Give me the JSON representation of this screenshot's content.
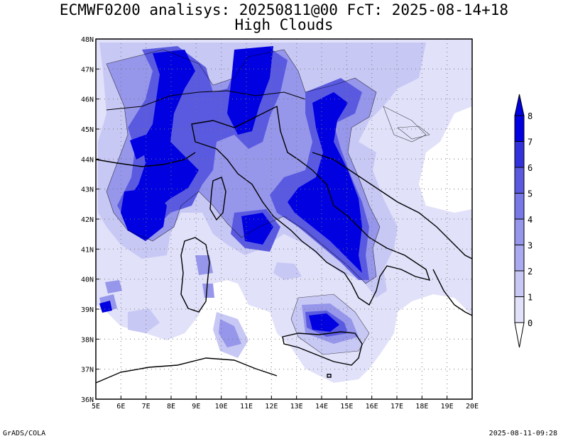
{
  "title_line1": "ECMWF0200 analisys: 20250811@00 FcT: 2025-08-14+18",
  "title_line2": "High Clouds",
  "footer_left": "GrADS/COLA",
  "footer_right": "2025-08-11-09:28",
  "map": {
    "lon_range": [
      5,
      20
    ],
    "lat_range": [
      36,
      48
    ],
    "lon_ticks": [
      "5E",
      "6E",
      "7E",
      "8E",
      "9E",
      "10E",
      "11E",
      "12E",
      "13E",
      "14E",
      "15E",
      "16E",
      "17E",
      "18E",
      "19E",
      "20E"
    ],
    "lat_ticks": [
      "36N",
      "37N",
      "38N",
      "39N",
      "40N",
      "41N",
      "42N",
      "43N",
      "44N",
      "45N",
      "46N",
      "47N",
      "48N"
    ],
    "grid": "dotted"
  },
  "colorbar": {
    "levels": [
      "0",
      "1",
      "2",
      "3",
      "4",
      "5",
      "6",
      "7",
      "8"
    ],
    "colors": [
      "#ffffff",
      "#e1e1fa",
      "#c8c8f5",
      "#aaaaf0",
      "#9696eb",
      "#7878e6",
      "#5a5ae1",
      "#3232dc",
      "#0000e1"
    ]
  }
}
